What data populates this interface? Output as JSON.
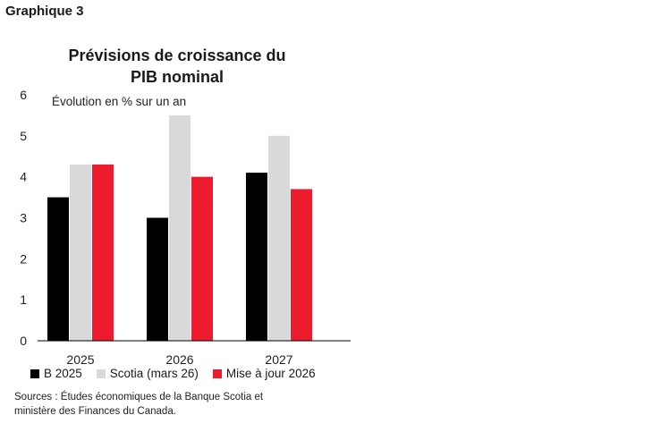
{
  "header": {
    "graphique_label": "Graphique 3"
  },
  "chart_data": {
    "type": "bar",
    "title_line1": "Prévisions de croissance du",
    "title_line2": "PIB nominal",
    "subtitle": "Évolution en % sur un an",
    "categories": [
      "2025",
      "2026",
      "2027"
    ],
    "ylim": [
      0,
      6
    ],
    "yticks": [
      "0",
      "1",
      "2",
      "3",
      "4",
      "5",
      "6"
    ],
    "grid": false,
    "legend_position": "bottom",
    "series": [
      {
        "name": "B 2025",
        "color": "#000000",
        "values": [
          3.5,
          3.0,
          4.1
        ]
      },
      {
        "name": "Scotia (mars 26)",
        "color": "#d9d9d9",
        "values": [
          4.3,
          5.5,
          5.0
        ]
      },
      {
        "name": "Mise à jour 2026",
        "color": "#ec1c2e",
        "values": [
          4.3,
          4.0,
          3.7
        ]
      }
    ]
  },
  "source": {
    "line1": "Sources : Études économiques de la Banque Scotia et",
    "line2": "ministère des Finances du Canada."
  }
}
